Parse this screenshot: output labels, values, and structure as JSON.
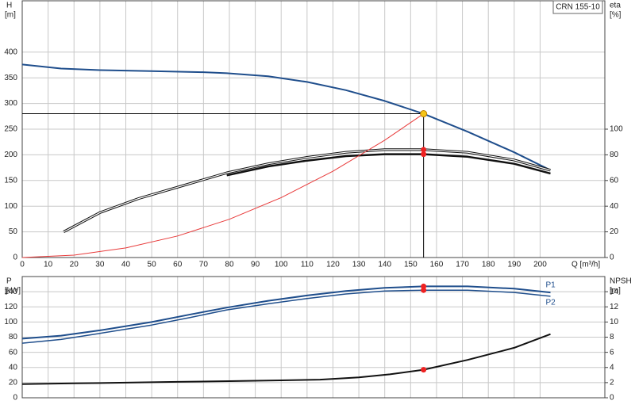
{
  "chart_data": [
    {
      "type": "line",
      "annotation": "CRN 155-10",
      "ylabel": "H",
      "yunit": "[m]",
      "y2label": "eta",
      "y2unit": "[%]",
      "xlabel": "Q [m³/h]",
      "xlim": [
        0,
        225
      ],
      "xticks": [
        0,
        10,
        20,
        30,
        40,
        50,
        60,
        70,
        80,
        90,
        100,
        110,
        120,
        130,
        140,
        150,
        160,
        170,
        180,
        190,
        200
      ],
      "show_xtick_labels": true,
      "ylim": [
        0,
        500
      ],
      "yticks": [
        0,
        50,
        100,
        150,
        200,
        250,
        300,
        350,
        400
      ],
      "y2lim": [
        0,
        200
      ],
      "y2ticks": [
        0,
        20,
        40,
        60,
        80,
        100
      ],
      "grid": true,
      "series": [
        {
          "color": "#1f4e8c",
          "width": 2,
          "x": [
            0,
            15,
            30,
            50,
            70,
            79,
            95,
            110,
            125,
            140,
            155,
            172,
            190,
            204
          ],
          "values": [
            376,
            368,
            365,
            363,
            361,
            359,
            353,
            342,
            326,
            305,
            280,
            245,
            205,
            170
          ]
        },
        {
          "color": "#111111",
          "style": "double",
          "axis": "y2",
          "x": [
            16,
            30,
            45,
            62,
            79,
            95,
            110,
            125,
            140,
            155,
            172,
            190,
            204
          ],
          "values": [
            20,
            35,
            46,
            56,
            66,
            73,
            78,
            82,
            84,
            84,
            82,
            76,
            68
          ]
        },
        {
          "color": "#111111",
          "width": 2.5,
          "axis": "y2",
          "x": [
            79,
            95,
            110,
            125,
            140,
            155,
            172,
            190,
            204
          ],
          "values": [
            64,
            71,
            75.5,
            79,
            80.5,
            80.5,
            78.5,
            73,
            65.5
          ]
        },
        {
          "color": "#e83a3a",
          "width": 1,
          "x": [
            0,
            20,
            40,
            60,
            80,
            100,
            120,
            140,
            155
          ],
          "values": [
            0,
            4.7,
            18.7,
            42,
            74.6,
            116.6,
            168,
            228.5,
            280
          ]
        }
      ],
      "markers": [
        {
          "x": 155,
          "y": 84,
          "axis": "y2",
          "color": "#ee2222"
        },
        {
          "x": 155,
          "y": 80.5,
          "axis": "y2",
          "color": "#ee2222"
        }
      ],
      "duty_point": {
        "x": 155,
        "y": 280,
        "color": "#f5c518"
      }
    },
    {
      "type": "line",
      "ylabel": "P",
      "yunit": "[kW]",
      "y2label": "NPSH",
      "y2unit": "[m]",
      "xlim": [
        0,
        225
      ],
      "xticks": [
        0,
        10,
        20,
        30,
        40,
        50,
        60,
        70,
        80,
        90,
        100,
        110,
        120,
        130,
        140,
        150,
        160,
        170,
        180,
        190,
        200
      ],
      "show_xtick_labels": false,
      "ylim": [
        0,
        160
      ],
      "yticks": [
        0,
        20,
        40,
        60,
        80,
        100,
        120,
        140
      ],
      "y2lim": [
        0,
        16
      ],
      "y2ticks": [
        0,
        2,
        4,
        6,
        8,
        10,
        12,
        14
      ],
      "grid": true,
      "series": [
        {
          "name": "P1",
          "color": "#1f4e8c",
          "width": 2,
          "x": [
            0,
            15,
            30,
            50,
            65,
            79,
            95,
            110,
            125,
            140,
            155,
            172,
            190,
            204
          ],
          "values": [
            78,
            82,
            89,
            100,
            110,
            119,
            128,
            135,
            141,
            145,
            147,
            147,
            144,
            139
          ]
        },
        {
          "name": "P2",
          "color": "#1f4e8c",
          "width": 1.5,
          "x": [
            0,
            15,
            30,
            50,
            65,
            79,
            95,
            110,
            125,
            140,
            155,
            172,
            190,
            204
          ],
          "values": [
            72,
            77,
            85,
            96,
            106,
            116,
            124,
            131,
            137,
            141,
            142,
            142,
            139,
            134
          ]
        },
        {
          "color": "#111111",
          "width": 2,
          "axis": "y2",
          "x": [
            0,
            20,
            40,
            60,
            80,
            100,
            115,
            130,
            142,
            155,
            172,
            190,
            204
          ],
          "values": [
            1.8,
            1.9,
            2.0,
            2.1,
            2.2,
            2.3,
            2.4,
            2.7,
            3.1,
            3.7,
            5,
            6.6,
            8.4
          ]
        }
      ],
      "markers": [
        {
          "x": 155,
          "y": 147,
          "color": "#ee2222"
        },
        {
          "x": 155,
          "y": 142,
          "color": "#ee2222"
        },
        {
          "x": 155,
          "y": 3.7,
          "axis": "y2",
          "color": "#ee2222"
        }
      ]
    }
  ]
}
